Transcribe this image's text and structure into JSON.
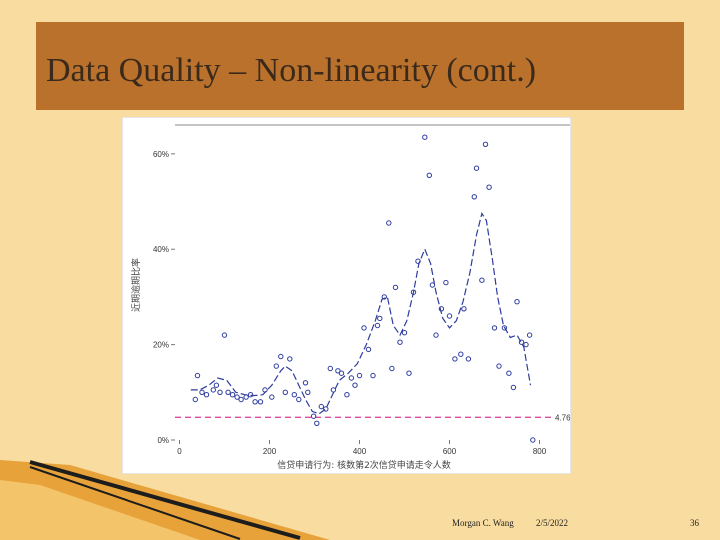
{
  "slide": {
    "title": "Data Quality – Non-linearity (cont.)",
    "author": "Morgan C. Wang",
    "date": "2/5/2022",
    "page": "36"
  },
  "colors": {
    "background": "#f8dca0",
    "title_bar": "#b9712c",
    "title_text": "#3b2a1c",
    "series": "#2e3c9e",
    "reference_line": "#d94ca0"
  },
  "chart_data": {
    "type": "scatter",
    "xlabel": "信贷申请行为: 核数第2次信贷申请走令人数",
    "ylabel": "近期逾期比率",
    "xlim": [
      -10,
      830
    ],
    "ylim": [
      0,
      0.65
    ],
    "xticks": [
      0,
      200,
      400,
      600,
      800
    ],
    "xtick_labels": [
      "0",
      "200",
      "400",
      "600",
      "800"
    ],
    "yticks": [
      0,
      0.2,
      0.4,
      0.6
    ],
    "ytick_labels": [
      "0%",
      "20%",
      "40%",
      "60%"
    ],
    "reference_line": {
      "value": 0.0476,
      "label": "4.76%"
    },
    "points": [
      [
        35,
        0.085
      ],
      [
        40,
        0.135
      ],
      [
        50,
        0.1
      ],
      [
        60,
        0.095
      ],
      [
        75,
        0.105
      ],
      [
        82,
        0.115
      ],
      [
        90,
        0.1
      ],
      [
        100,
        0.22
      ],
      [
        108,
        0.1
      ],
      [
        118,
        0.095
      ],
      [
        128,
        0.09
      ],
      [
        137,
        0.085
      ],
      [
        148,
        0.09
      ],
      [
        158,
        0.095
      ],
      [
        168,
        0.08
      ],
      [
        180,
        0.08
      ],
      [
        190,
        0.105
      ],
      [
        205,
        0.09
      ],
      [
        215,
        0.155
      ],
      [
        225,
        0.175
      ],
      [
        235,
        0.1
      ],
      [
        245,
        0.17
      ],
      [
        255,
        0.095
      ],
      [
        265,
        0.085
      ],
      [
        280,
        0.12
      ],
      [
        285,
        0.1
      ],
      [
        298,
        0.05
      ],
      [
        305,
        0.035
      ],
      [
        315,
        0.07
      ],
      [
        325,
        0.065
      ],
      [
        335,
        0.15
      ],
      [
        342,
        0.105
      ],
      [
        352,
        0.145
      ],
      [
        360,
        0.14
      ],
      [
        372,
        0.095
      ],
      [
        382,
        0.13
      ],
      [
        390,
        0.115
      ],
      [
        400,
        0.135
      ],
      [
        410,
        0.235
      ],
      [
        420,
        0.19
      ],
      [
        430,
        0.135
      ],
      [
        440,
        0.24
      ],
      [
        445,
        0.255
      ],
      [
        455,
        0.3
      ],
      [
        465,
        0.455
      ],
      [
        472,
        0.15
      ],
      [
        480,
        0.32
      ],
      [
        490,
        0.205
      ],
      [
        500,
        0.225
      ],
      [
        510,
        0.14
      ],
      [
        520,
        0.31
      ],
      [
        530,
        0.375
      ],
      [
        545,
        0.635
      ],
      [
        555,
        0.555
      ],
      [
        562,
        0.325
      ],
      [
        570,
        0.22
      ],
      [
        582,
        0.275
      ],
      [
        592,
        0.33
      ],
      [
        600,
        0.26
      ],
      [
        612,
        0.17
      ],
      [
        625,
        0.18
      ],
      [
        632,
        0.275
      ],
      [
        642,
        0.17
      ],
      [
        655,
        0.51
      ],
      [
        660,
        0.57
      ],
      [
        672,
        0.335
      ],
      [
        680,
        0.62
      ],
      [
        688,
        0.53
      ],
      [
        700,
        0.235
      ],
      [
        710,
        0.155
      ],
      [
        722,
        0.235
      ],
      [
        732,
        0.14
      ],
      [
        742,
        0.11
      ],
      [
        750,
        0.29
      ],
      [
        760,
        0.205
      ],
      [
        770,
        0.2
      ],
      [
        778,
        0.22
      ],
      [
        785,
        0.0
      ]
    ],
    "smooth_curve": [
      [
        25,
        0.105
      ],
      [
        45,
        0.105
      ],
      [
        65,
        0.115
      ],
      [
        85,
        0.13
      ],
      [
        105,
        0.125
      ],
      [
        125,
        0.1
      ],
      [
        145,
        0.095
      ],
      [
        165,
        0.093
      ],
      [
        185,
        0.095
      ],
      [
        205,
        0.115
      ],
      [
        225,
        0.145
      ],
      [
        235,
        0.155
      ],
      [
        250,
        0.145
      ],
      [
        265,
        0.115
      ],
      [
        280,
        0.085
      ],
      [
        295,
        0.06
      ],
      [
        310,
        0.055
      ],
      [
        325,
        0.065
      ],
      [
        340,
        0.095
      ],
      [
        355,
        0.125
      ],
      [
        375,
        0.14
      ],
      [
        395,
        0.16
      ],
      [
        415,
        0.2
      ],
      [
        435,
        0.25
      ],
      [
        450,
        0.295
      ],
      [
        462,
        0.3
      ],
      [
        475,
        0.24
      ],
      [
        490,
        0.22
      ],
      [
        505,
        0.25
      ],
      [
        520,
        0.31
      ],
      [
        532,
        0.37
      ],
      [
        545,
        0.4
      ],
      [
        558,
        0.37
      ],
      [
        570,
        0.31
      ],
      [
        585,
        0.255
      ],
      [
        600,
        0.235
      ],
      [
        615,
        0.25
      ],
      [
        630,
        0.29
      ],
      [
        645,
        0.35
      ],
      [
        660,
        0.43
      ],
      [
        672,
        0.475
      ],
      [
        682,
        0.46
      ],
      [
        695,
        0.38
      ],
      [
        707,
        0.3
      ],
      [
        720,
        0.24
      ],
      [
        735,
        0.215
      ],
      [
        750,
        0.22
      ],
      [
        765,
        0.195
      ],
      [
        780,
        0.115
      ]
    ]
  }
}
